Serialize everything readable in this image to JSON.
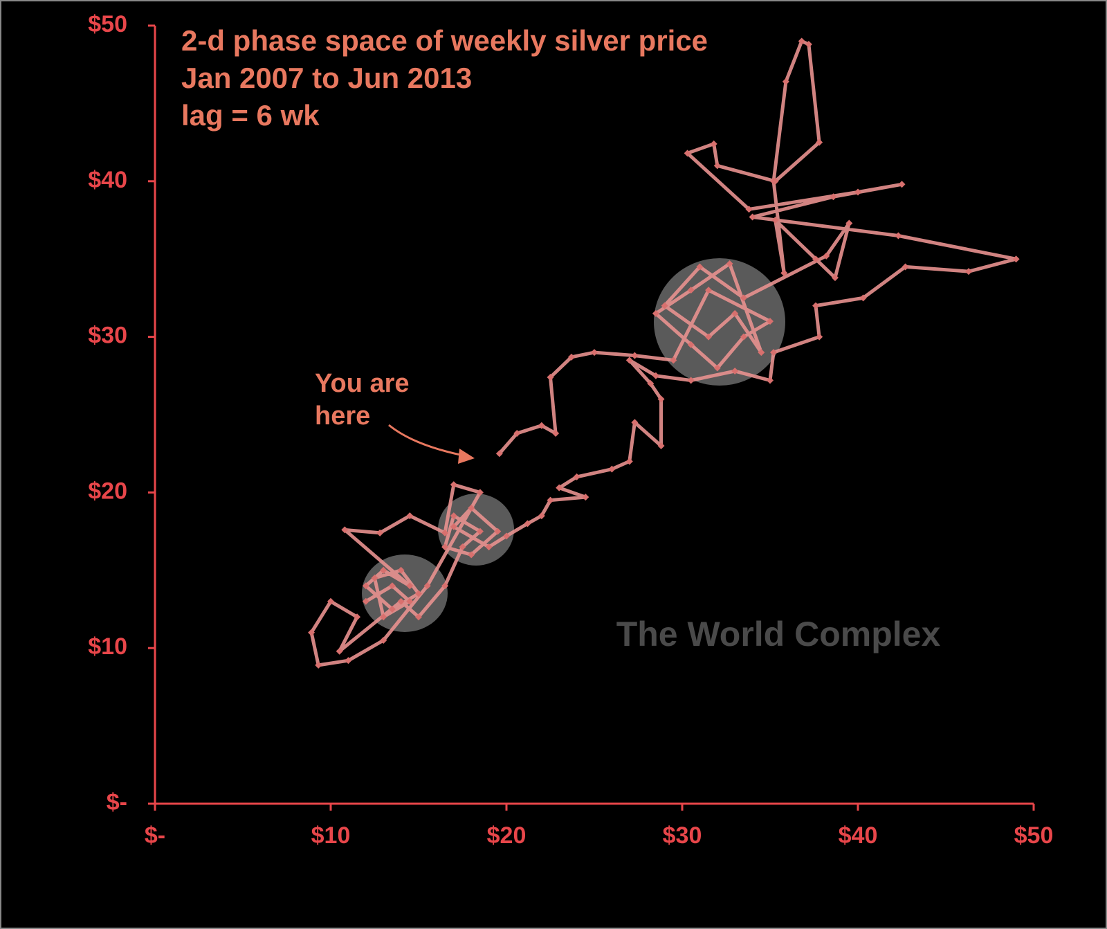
{
  "chart_data": {
    "type": "line",
    "title": [
      "2-d phase space of weekly silver price",
      "Jan 2007 to Jun 2013",
      "lag = 6 wk"
    ],
    "annotation": [
      "You are",
      "here"
    ],
    "watermark": "The World Complex",
    "x": [
      12,
      13.5,
      14.5,
      13,
      12.5,
      14,
      15,
      13.5,
      12,
      13,
      14.5,
      10.8,
      12.8,
      14.5,
      16.5,
      17,
      18.5,
      15.5,
      13,
      11,
      9.3,
      8.9,
      10,
      11.5,
      10.5,
      14,
      15,
      16.5,
      17.5,
      18.5,
      17,
      16.5,
      18,
      19.5,
      18,
      17,
      19,
      20,
      21.2,
      22,
      22.5,
      24.5,
      23,
      24,
      26,
      27,
      27.3,
      28.8,
      28.8,
      28.2,
      27,
      28.5,
      30.5,
      33,
      35,
      35.2,
      37.8,
      37.6,
      40.3,
      42.7,
      46.3,
      49,
      42.3,
      34,
      38.6,
      42.5,
      40,
      33.8,
      30.3,
      31.8,
      32,
      35.3,
      37.8,
      37.2,
      36.8,
      35.9,
      35.2,
      35.8,
      35.3,
      37.6,
      38.7,
      39.5,
      38.2,
      33.5,
      31,
      29,
      31.5,
      33,
      34.5,
      32.7,
      30.5,
      28.5,
      30.5,
      32,
      33.5,
      35,
      31.5,
      29.5,
      27.3,
      25,
      23.7,
      22.5,
      22.8,
      22,
      20.6,
      19.6
    ],
    "series": [
      {
        "color": "#e8918f",
        "values": [
          13,
          14,
          13,
          12,
          14.5,
          15,
          13.5,
          12.5,
          14,
          15,
          14,
          17.6,
          17.4,
          18.5,
          17.4,
          20.5,
          20,
          14,
          10.5,
          9.2,
          8.9,
          11,
          13,
          12,
          9.8,
          13,
          12,
          14,
          16.5,
          17.5,
          18.5,
          16.5,
          16,
          17.5,
          19,
          17.8,
          16.5,
          17.2,
          18,
          18.5,
          19.5,
          19.7,
          20.3,
          21,
          21.5,
          22,
          24.5,
          23,
          26,
          27,
          28.5,
          27.5,
          27.2,
          27.8,
          27.2,
          29,
          30,
          32,
          32.5,
          34.5,
          34.2,
          35,
          36.5,
          37.7,
          39,
          39.8,
          39.3,
          38.2,
          41.8,
          42.4,
          41,
          40,
          42.5,
          48.8,
          49,
          46.4,
          40,
          34.1,
          37.5,
          35,
          33.8,
          37.3,
          35.2,
          32.5,
          34.5,
          32,
          30,
          31.5,
          29,
          34.7,
          33,
          31.5,
          29.5,
          28,
          30,
          31,
          33,
          28.5,
          28.8,
          29,
          28.7,
          27.4,
          23.8,
          24.3,
          23.8,
          22.5
        ]
      }
    ],
    "xlim": [
      0,
      50
    ],
    "ylim": [
      0,
      50
    ],
    "xticks": [
      {
        "value": 0,
        "label": "$-"
      },
      {
        "value": 10,
        "label": "$10"
      },
      {
        "value": 20,
        "label": "$20"
      },
      {
        "value": 30,
        "label": "$30"
      },
      {
        "value": 40,
        "label": "$40"
      },
      {
        "value": 50,
        "label": "$50"
      }
    ],
    "yticks": [
      {
        "value": 0,
        "label": "$-"
      },
      {
        "value": 10,
        "label": "$10"
      },
      {
        "value": 20,
        "label": "$20"
      },
      {
        "value": 30,
        "label": "$30"
      },
      {
        "value": 40,
        "label": "$40"
      },
      {
        "value": 50,
        "label": "$50"
      }
    ],
    "grid": false
  }
}
